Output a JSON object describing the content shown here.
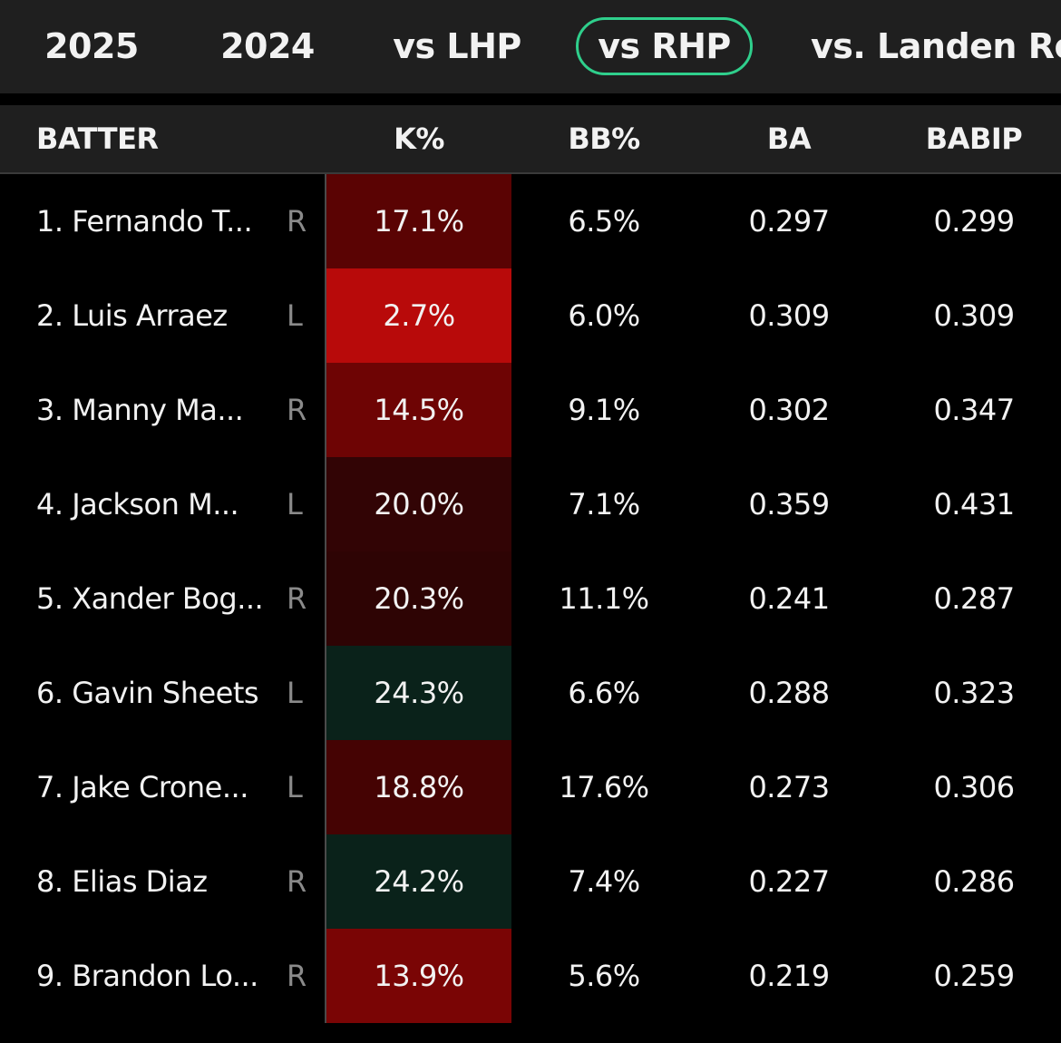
{
  "tabs": [
    {
      "label": "2025",
      "active": false
    },
    {
      "label": "2024",
      "active": false
    },
    {
      "label": "vs LHP",
      "active": false
    },
    {
      "label": "vs RHP",
      "active": true
    },
    {
      "label": "vs. Landen Roupp",
      "active": false
    }
  ],
  "colors": {
    "accent_active_tab": "#2fcf8c",
    "k_red_strong": "#b80a0a",
    "k_red_mid": "#7a0505",
    "k_red_dark": "#5a0303",
    "k_red_darker": "#450303",
    "k_red_darkest": "#2e0404",
    "k_green_dark": "#0a221a"
  },
  "table": {
    "headers": {
      "batter": "BATTER",
      "k_pct": "K%",
      "bb_pct": "BB%",
      "ba": "BA",
      "babip": "BABIP"
    },
    "rows": [
      {
        "name": "1. Fernando T...",
        "hand": "R",
        "k_pct": "17.1%",
        "bb_pct": "6.5%",
        "ba": "0.297",
        "babip": "0.299",
        "k_color": "#5a0303"
      },
      {
        "name": "2. Luis Arraez",
        "hand": "L",
        "k_pct": "2.7%",
        "bb_pct": "6.0%",
        "ba": "0.309",
        "babip": "0.309",
        "k_color": "#b80a0a"
      },
      {
        "name": "3. Manny Ma...",
        "hand": "R",
        "k_pct": "14.5%",
        "bb_pct": "9.1%",
        "ba": "0.302",
        "babip": "0.347",
        "k_color": "#6e0404"
      },
      {
        "name": "4. Jackson M...",
        "hand": "L",
        "k_pct": "20.0%",
        "bb_pct": "7.1%",
        "ba": "0.359",
        "babip": "0.431",
        "k_color": "#320405"
      },
      {
        "name": "5. Xander Bog...",
        "hand": "R",
        "k_pct": "20.3%",
        "bb_pct": "11.1%",
        "ba": "0.241",
        "babip": "0.287",
        "k_color": "#2e0404"
      },
      {
        "name": "6. Gavin Sheets",
        "hand": "L",
        "k_pct": "24.3%",
        "bb_pct": "6.6%",
        "ba": "0.288",
        "babip": "0.323",
        "k_color": "#0a221a"
      },
      {
        "name": "7. Jake Crone...",
        "hand": "L",
        "k_pct": "18.8%",
        "bb_pct": "17.6%",
        "ba": "0.273",
        "babip": "0.306",
        "k_color": "#450303"
      },
      {
        "name": "8. Elias Diaz",
        "hand": "R",
        "k_pct": "24.2%",
        "bb_pct": "7.4%",
        "ba": "0.227",
        "babip": "0.286",
        "k_color": "#0a221a"
      },
      {
        "name": "9. Brandon Lo...",
        "hand": "R",
        "k_pct": "13.9%",
        "bb_pct": "5.6%",
        "ba": "0.219",
        "babip": "0.259",
        "k_color": "#7a0505"
      }
    ]
  }
}
